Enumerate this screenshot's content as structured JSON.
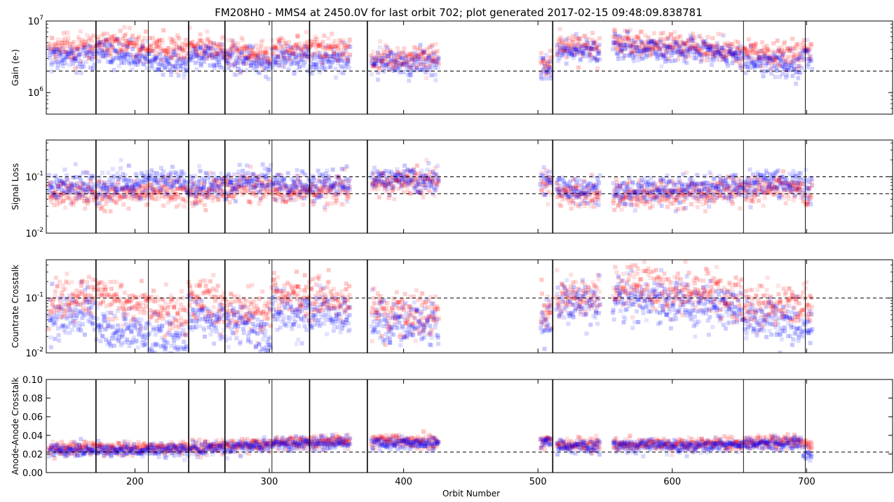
{
  "chart_data": {
    "type": "scatter",
    "title": "FM208H0 - MMS4 at 2450.0V for last orbit 702; plot generated 2017-02-15 09:48:09.838781",
    "xlabel": "Orbit Number",
    "xlim": [
      134,
      764
    ],
    "xticks": [
      200,
      300,
      400,
      500,
      600,
      700
    ],
    "event_lines": [
      {
        "x": 171,
        "weight": "thick"
      },
      {
        "x": 210,
        "weight": "thin"
      },
      {
        "x": 240,
        "weight": "thick"
      },
      {
        "x": 267,
        "weight": "thick"
      },
      {
        "x": 302,
        "weight": "thin"
      },
      {
        "x": 330,
        "weight": "thick"
      },
      {
        "x": 373,
        "weight": "thick"
      },
      {
        "x": 511,
        "weight": "thick"
      },
      {
        "x": 653,
        "weight": "thin"
      },
      {
        "x": 699,
        "weight": "thin"
      }
    ],
    "series_colors": {
      "red": "#ff0000",
      "blue": "#0000ff"
    },
    "panels": [
      {
        "id": "gain",
        "ylabel": "Gain (e-)",
        "scale": "log",
        "ylim": [
          500000,
          10000000
        ],
        "yticks": [
          {
            "value": 1000000,
            "base": "10",
            "exp": "6"
          },
          {
            "value": 10000000,
            "base": "10",
            "exp": "7"
          }
        ],
        "reference_lines": [
          2000000
        ],
        "spread": 0.09,
        "segments": [
          {
            "x0": 136,
            "x1": 170,
            "red": [
              4200000,
              4500000
            ],
            "blue": [
              3000000,
              3500000
            ]
          },
          {
            "x0": 171,
            "x1": 239,
            "red": [
              5200000,
              3800000
            ],
            "blue": [
              3800000,
              2300000
            ]
          },
          {
            "x0": 240,
            "x1": 301,
            "red": [
              4600000,
              3100000
            ],
            "blue": [
              3500000,
              2500000
            ]
          },
          {
            "x0": 302,
            "x1": 360,
            "red": [
              4200000,
              3900000
            ],
            "blue": [
              3000000,
              2800000
            ]
          },
          {
            "x0": 376,
            "x1": 426,
            "red": [
              3000000,
              2900000
            ],
            "blue": [
              2600000,
              2500000
            ]
          },
          {
            "x0": 502,
            "x1": 510,
            "red": [
              2500000,
              2600000
            ],
            "blue": [
              2200000,
              2300000
            ]
          },
          {
            "x0": 514,
            "x1": 546,
            "red": [
              4300000,
              4500000
            ],
            "blue": [
              3700000,
              3800000
            ]
          },
          {
            "x0": 556,
            "x1": 652,
            "red": [
              4800000,
              3800000
            ],
            "blue": [
              4100000,
              3400000
            ]
          },
          {
            "x0": 653,
            "x1": 696,
            "red": [
              3600000,
              3400000
            ],
            "blue": [
              2700000,
              2400000
            ]
          },
          {
            "x0": 697,
            "x1": 704,
            "red": [
              4200000,
              3800000
            ],
            "blue": [
              3600000,
              3300000
            ]
          }
        ]
      },
      {
        "id": "signal_loss",
        "ylabel": "Signal Loss",
        "scale": "log",
        "ylim": [
          0.01,
          0.45
        ],
        "yticks": [
          {
            "value": 0.01,
            "base": "10",
            "exp": "-2"
          },
          {
            "value": 0.1,
            "base": "10",
            "exp": "-1"
          }
        ],
        "reference_lines": [
          0.1,
          0.05
        ],
        "spread": 0.12,
        "segments": [
          {
            "x0": 136,
            "x1": 170,
            "red": [
              0.05,
              0.05
            ],
            "blue": [
              0.07,
              0.07
            ]
          },
          {
            "x0": 171,
            "x1": 239,
            "red": [
              0.045,
              0.06
            ],
            "blue": [
              0.065,
              0.09
            ]
          },
          {
            "x0": 240,
            "x1": 301,
            "red": [
              0.05,
              0.07
            ],
            "blue": [
              0.065,
              0.09
            ]
          },
          {
            "x0": 302,
            "x1": 360,
            "red": [
              0.05,
              0.06
            ],
            "blue": [
              0.07,
              0.075
            ]
          },
          {
            "x0": 376,
            "x1": 426,
            "red": [
              0.08,
              0.08
            ],
            "blue": [
              0.085,
              0.085
            ]
          },
          {
            "x0": 502,
            "x1": 510,
            "red": [
              0.08,
              0.08
            ],
            "blue": [
              0.09,
              0.09
            ]
          },
          {
            "x0": 514,
            "x1": 546,
            "red": [
              0.05,
              0.05
            ],
            "blue": [
              0.06,
              0.06
            ]
          },
          {
            "x0": 556,
            "x1": 652,
            "red": [
              0.045,
              0.055
            ],
            "blue": [
              0.055,
              0.065
            ]
          },
          {
            "x0": 653,
            "x1": 696,
            "red": [
              0.06,
              0.065
            ],
            "blue": [
              0.075,
              0.085
            ]
          },
          {
            "x0": 697,
            "x1": 704,
            "red": [
              0.05,
              0.05
            ],
            "blue": [
              0.065,
              0.065
            ]
          }
        ]
      },
      {
        "id": "countrate_crosstalk",
        "ylabel": "Countrate Crosstalk",
        "scale": "log",
        "ylim": [
          0.01,
          0.5
        ],
        "yticks": [
          {
            "value": 0.01,
            "base": "10",
            "exp": "-2"
          },
          {
            "value": 0.1,
            "base": "10",
            "exp": "-1"
          }
        ],
        "reference_lines": [
          0.1
        ],
        "spread": 0.2,
        "segments": [
          {
            "x0": 136,
            "x1": 170,
            "red": [
              0.08,
              0.1
            ],
            "blue": [
              0.04,
              0.05
            ]
          },
          {
            "x0": 171,
            "x1": 239,
            "red": [
              0.1,
              0.045
            ],
            "blue": [
              0.03,
              0.015
            ]
          },
          {
            "x0": 240,
            "x1": 301,
            "red": [
              0.1,
              0.045
            ],
            "blue": [
              0.05,
              0.018
            ]
          },
          {
            "x0": 302,
            "x1": 360,
            "red": [
              0.12,
              0.08
            ],
            "blue": [
              0.06,
              0.045
            ]
          },
          {
            "x0": 376,
            "x1": 426,
            "red": [
              0.06,
              0.05
            ],
            "blue": [
              0.035,
              0.03
            ]
          },
          {
            "x0": 502,
            "x1": 510,
            "red": [
              0.06,
              0.06
            ],
            "blue": [
              0.03,
              0.03
            ]
          },
          {
            "x0": 514,
            "x1": 546,
            "red": [
              0.1,
              0.1
            ],
            "blue": [
              0.08,
              0.08
            ]
          },
          {
            "x0": 556,
            "x1": 652,
            "red": [
              0.15,
              0.1
            ],
            "blue": [
              0.1,
              0.06
            ]
          },
          {
            "x0": 653,
            "x1": 696,
            "red": [
              0.08,
              0.07
            ],
            "blue": [
              0.05,
              0.03
            ]
          },
          {
            "x0": 697,
            "x1": 704,
            "red": [
              0.09,
              0.09
            ],
            "blue": [
              0.03,
              0.03
            ]
          }
        ]
      },
      {
        "id": "anode_anode_crosstalk",
        "ylabel": "Anode-Anode Crosstalk",
        "scale": "linear",
        "ylim": [
          0.0,
          0.1
        ],
        "yticks": [
          {
            "value": 0.0,
            "label": "0.00"
          },
          {
            "value": 0.02,
            "label": "0.02"
          },
          {
            "value": 0.04,
            "label": "0.04"
          },
          {
            "value": 0.06,
            "label": "0.06"
          },
          {
            "value": 0.08,
            "label": "0.08"
          },
          {
            "value": 0.1,
            "label": "0.10"
          }
        ],
        "reference_lines": [
          0.022
        ],
        "spread": 0.0035,
        "segments": [
          {
            "x0": 136,
            "x1": 170,
            "red": [
              0.026,
              0.026
            ],
            "blue": [
              0.024,
              0.024
            ]
          },
          {
            "x0": 171,
            "x1": 239,
            "red": [
              0.025,
              0.027
            ],
            "blue": [
              0.023,
              0.025
            ]
          },
          {
            "x0": 240,
            "x1": 301,
            "red": [
              0.027,
              0.031
            ],
            "blue": [
              0.025,
              0.029
            ]
          },
          {
            "x0": 302,
            "x1": 360,
            "red": [
              0.031,
              0.033
            ],
            "blue": [
              0.03,
              0.032
            ]
          },
          {
            "x0": 376,
            "x1": 426,
            "red": [
              0.034,
              0.033
            ],
            "blue": [
              0.032,
              0.031
            ]
          },
          {
            "x0": 502,
            "x1": 510,
            "red": [
              0.034,
              0.034
            ],
            "blue": [
              0.032,
              0.032
            ]
          },
          {
            "x0": 514,
            "x1": 546,
            "red": [
              0.03,
              0.03
            ],
            "blue": [
              0.028,
              0.028
            ]
          },
          {
            "x0": 556,
            "x1": 652,
            "red": [
              0.03,
              0.031
            ],
            "blue": [
              0.028,
              0.029
            ]
          },
          {
            "x0": 653,
            "x1": 696,
            "red": [
              0.032,
              0.033
            ],
            "blue": [
              0.031,
              0.032
            ]
          },
          {
            "x0": 697,
            "x1": 704,
            "red": [
              0.03,
              0.03
            ],
            "blue": [
              0.02,
              0.02
            ]
          }
        ]
      }
    ]
  }
}
